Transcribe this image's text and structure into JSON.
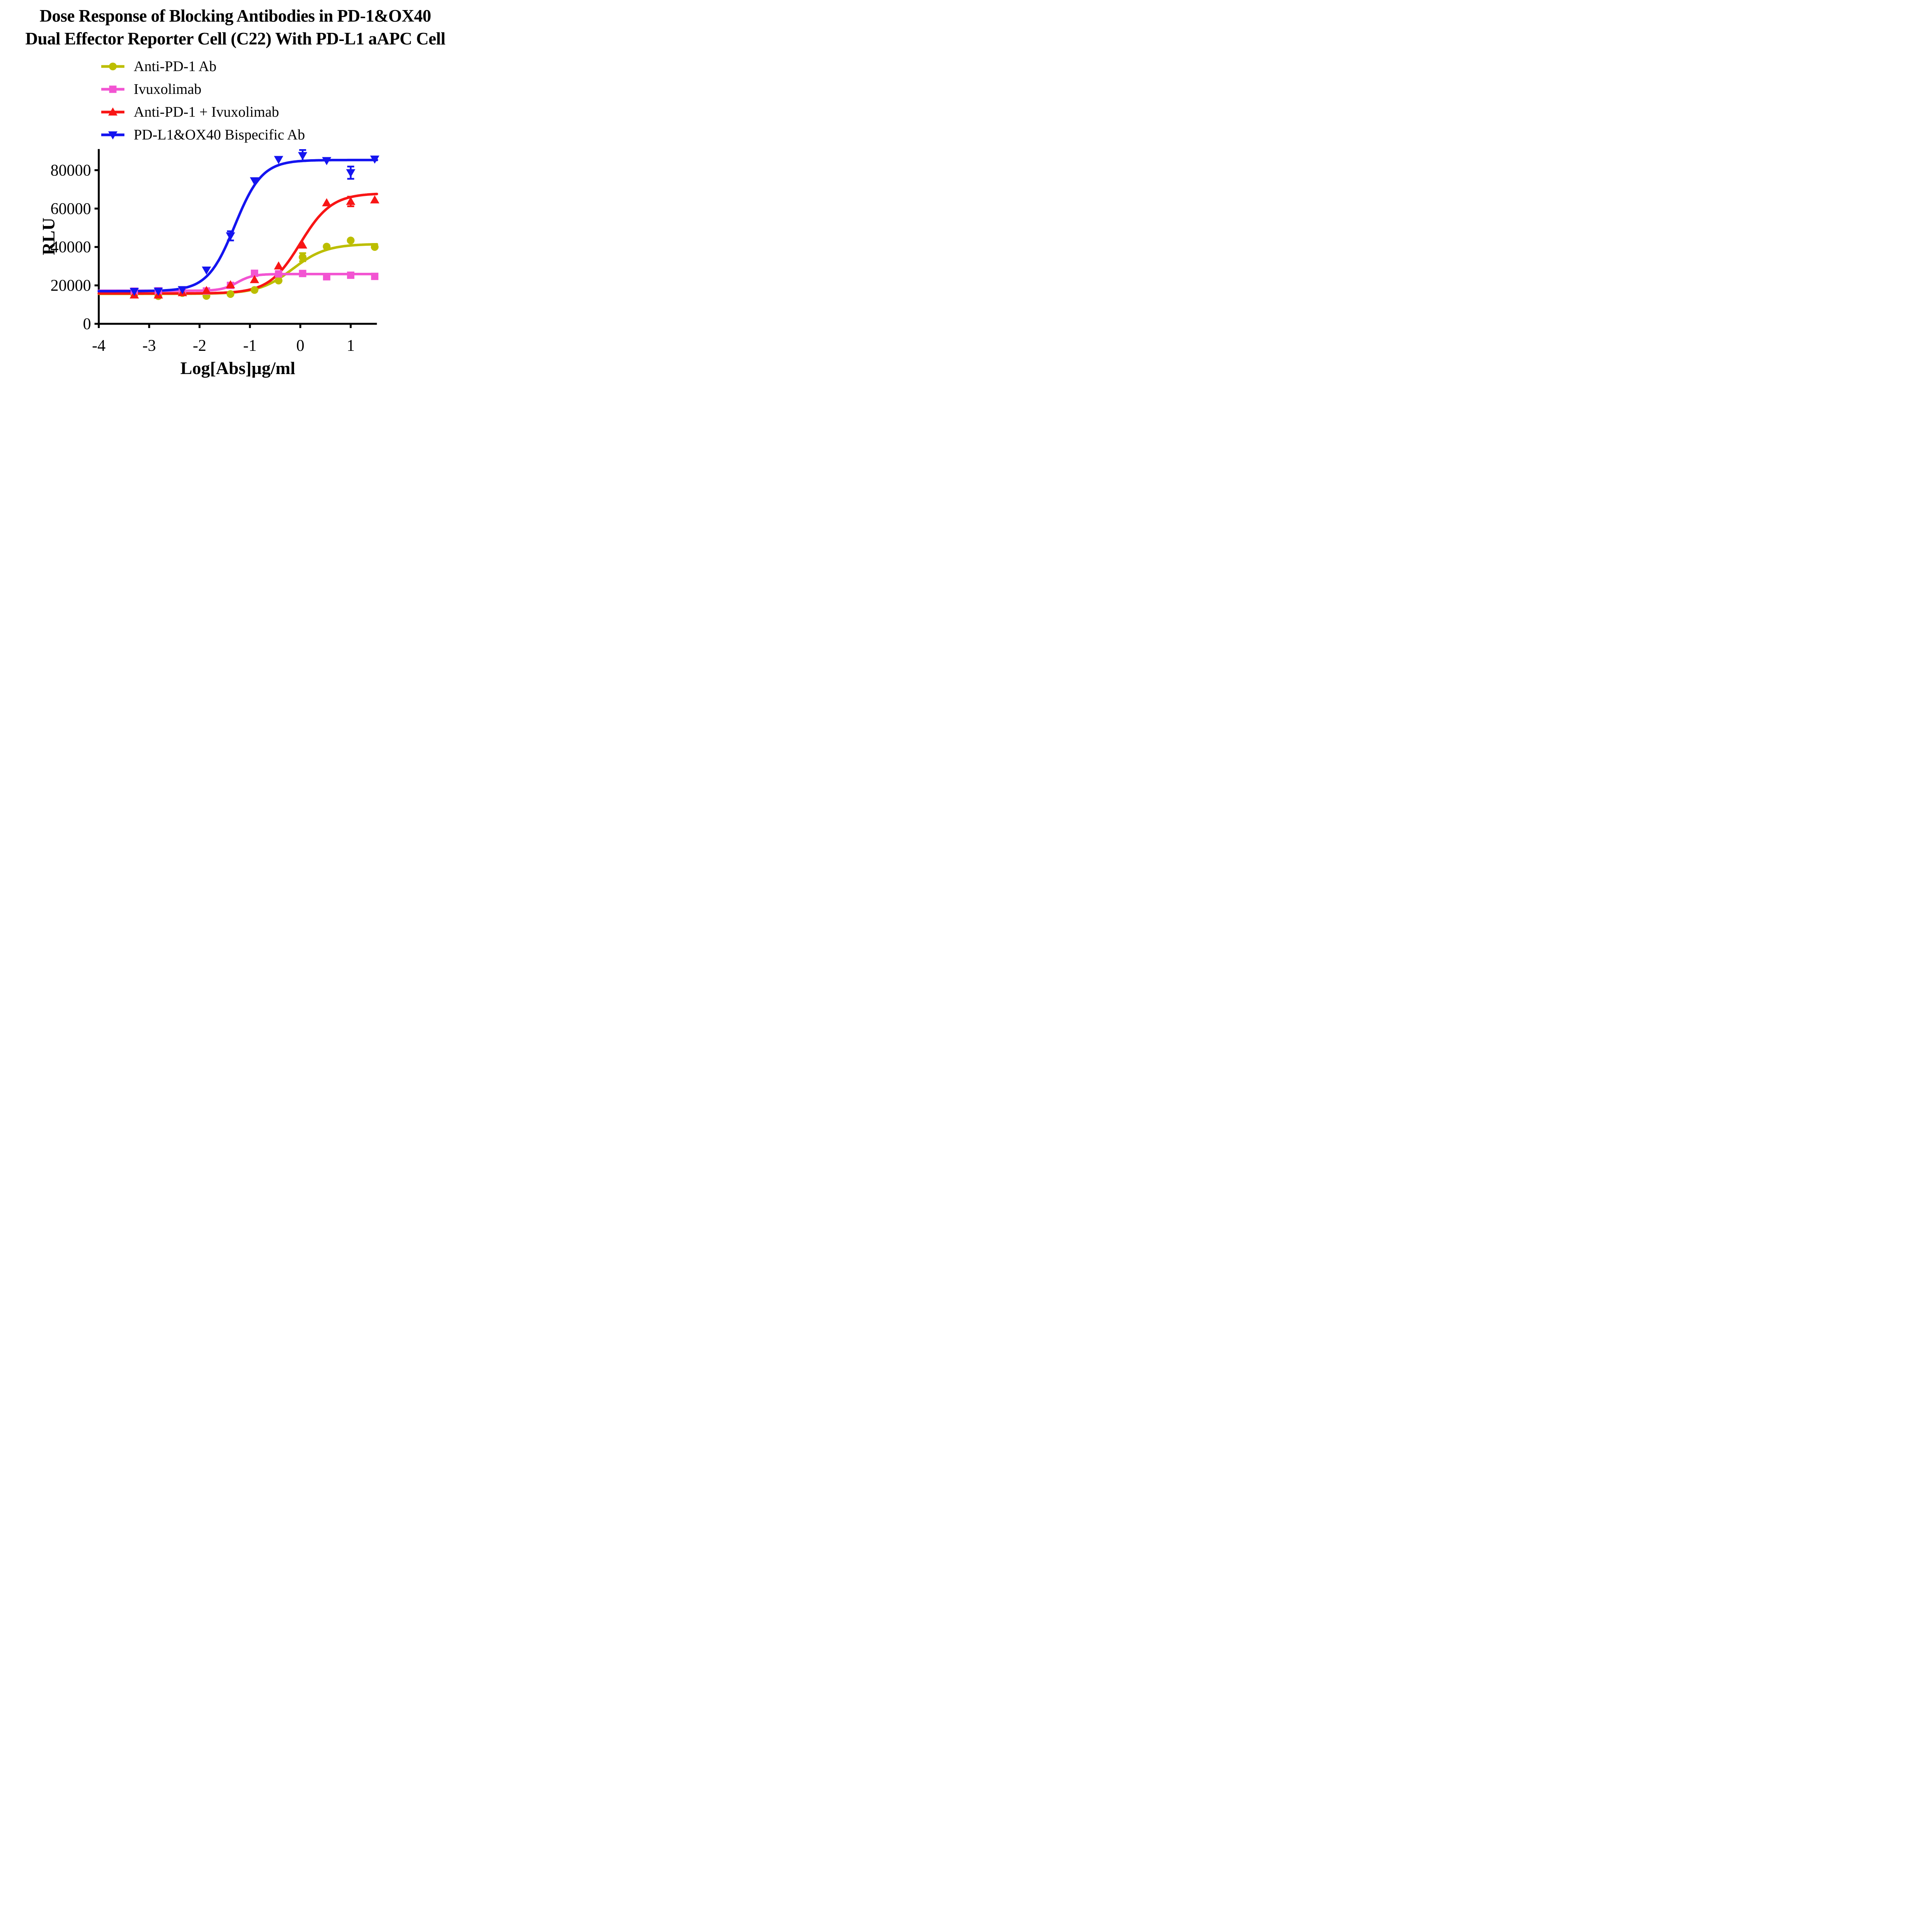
{
  "title": {
    "line1": "Dose Response of Blocking Antibodies in PD-1&OX40",
    "line2": "Dual Effector Reporter Cell (C22) With PD-L1 aAPC Cell"
  },
  "chart_data": {
    "type": "scatter",
    "title": "Dose Response of Blocking Antibodies in PD-1&OX40 Dual Effector Reporter Cell (C22) With PD-L1 aAPC Cell",
    "xlabel": "Log[Abs]µg/ml",
    "ylabel": "RLU",
    "xlim": [
      -4,
      1.52
    ],
    "ylim": [
      0,
      91000
    ],
    "x_ticks": [
      -4,
      -3,
      -2,
      -1,
      0,
      1
    ],
    "y_ticks": [
      0,
      20000,
      40000,
      60000,
      80000
    ],
    "grid": false,
    "legend_position": "top-left-above-plot",
    "x": [
      -3.295,
      -2.818,
      -2.34,
      -1.863,
      -1.386,
      -0.909,
      -0.431,
      0.046,
      0.523,
      1.0,
      1.477
    ],
    "series": [
      {
        "name": "Anti-PD-1 Ab",
        "color": "#BCBE00",
        "marker": "circle",
        "values": [
          15200,
          14400,
          16000,
          14500,
          15500,
          17600,
          22500,
          34700,
          40200,
          43400,
          40000
        ],
        "errors": [
          null,
          null,
          null,
          null,
          null,
          null,
          null,
          2100,
          null,
          null,
          null
        ],
        "fit": {
          "bottom": 15600,
          "top": 41600,
          "logEC50": -0.15,
          "hill": 1.3
        }
      },
      {
        "name": "Ivuxolimab",
        "color": "#F254D2",
        "marker": "square",
        "values": [
          17000,
          17200,
          17600,
          17100,
          20000,
          26300,
          26000,
          26200,
          24500,
          25300,
          24700
        ],
        "errors": [
          null,
          null,
          null,
          null,
          null,
          null,
          null,
          null,
          null,
          null,
          null
        ],
        "fit": {
          "bottom": 17200,
          "top": 25900,
          "logEC50": -1.25,
          "hill": 2.8
        }
      },
      {
        "name": "Anti-PD-1 + Ivuxolimab",
        "color": "#F81515",
        "marker": "triangle-up",
        "values": [
          15000,
          15000,
          16200,
          17300,
          20300,
          23000,
          30100,
          41000,
          63000,
          63700,
          64500
        ],
        "errors": [
          null,
          null,
          null,
          null,
          null,
          null,
          null,
          null,
          null,
          2500,
          null
        ],
        "fit": {
          "bottom": 15800,
          "top": 68000,
          "logEC50": 0.0,
          "hill": 1.4
        }
      },
      {
        "name": "PD-L1&OX40 Bispecific Ab",
        "color": "#1414F0",
        "marker": "triangle-down",
        "values": [
          16900,
          17000,
          17800,
          28000,
          45800,
          74500,
          85600,
          87600,
          85000,
          78700,
          85800
        ],
        "errors": [
          null,
          null,
          null,
          null,
          2400,
          null,
          null,
          2900,
          null,
          3200,
          null
        ],
        "fit": {
          "bottom": 17000,
          "top": 85300,
          "logEC50": -1.3,
          "hill": 1.6
        }
      }
    ]
  }
}
